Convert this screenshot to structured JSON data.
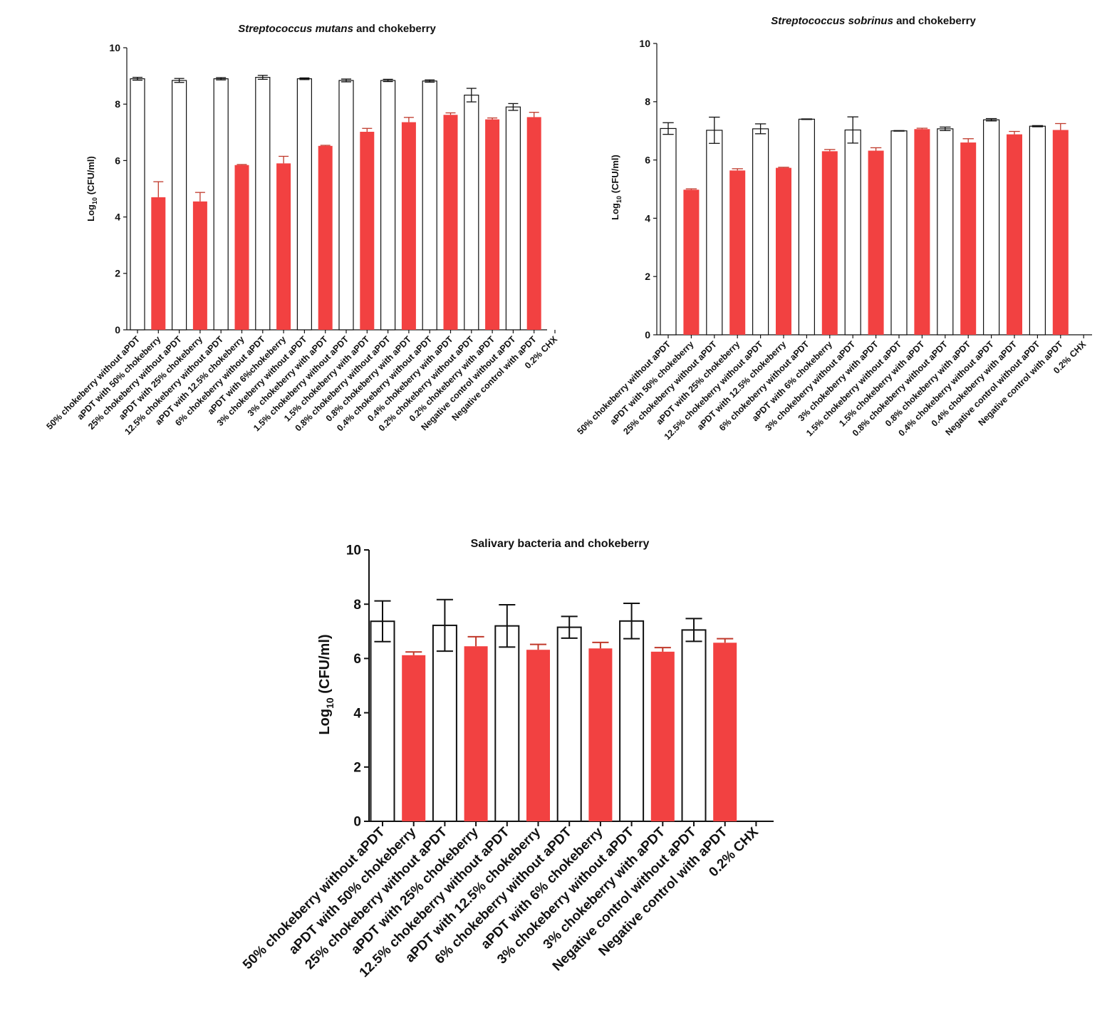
{
  "colors": {
    "red": "#f24141",
    "white": "#ffffff",
    "outline": "#111111"
  },
  "chart_data": [
    {
      "type": "bar",
      "title": "and chokeberry",
      "title_italic": "Streptococcus mutans",
      "ylabel_main": "Log",
      "ylabel_sub": "10",
      "ylabel_rest": " (CFU/ml)",
      "ylim": [
        0,
        10
      ],
      "yticks": [
        "0",
        "2",
        "4",
        "6",
        "8",
        "10"
      ],
      "categories": [
        "50% chokeberry without aPDT",
        "aPDT with 50% chokeberry",
        "25% chokeberry without aPDT",
        "aPDT with 25% chokeberry",
        "12.5% chokeberry without aPDT",
        "aPDT with 12.5% chokeberry",
        "6% chokeberry without aPDT",
        "aPDT with 6%chokeberry",
        "3% chokeberry without aPDT",
        "3% chokeberry with aPDT",
        "1.5% chokeberry without aPDT",
        "1.5% chokeberry with aPDT",
        "0.8% chokeberry without aPDT",
        "0.8% chokeberry with aPDT",
        "0.4% chokeberry without aPDT",
        "0.4% chokeberry with aPDT",
        "0.2% chokeberry without aPDT",
        "0.2% chokeberry with aPDT",
        "Negative control without aPDT",
        "Negative control with aPDT",
        "0.2% CHX"
      ],
      "values": [
        8.9,
        4.7,
        8.84,
        4.55,
        8.9,
        5.84,
        8.95,
        5.9,
        8.9,
        6.52,
        8.84,
        7.02,
        8.84,
        7.36,
        8.82,
        7.62,
        8.32,
        7.46,
        7.9,
        7.54,
        0
      ],
      "errors": [
        0.05,
        0.55,
        0.07,
        0.32,
        0.04,
        0.02,
        0.07,
        0.25,
        0.03,
        0.02,
        0.05,
        0.12,
        0.04,
        0.17,
        0.04,
        0.07,
        0.24,
        0.05,
        0.12,
        0.17,
        0
      ],
      "fills": [
        "white",
        "red",
        "white",
        "red",
        "white",
        "red",
        "white",
        "red",
        "white",
        "red",
        "white",
        "red",
        "white",
        "red",
        "white",
        "red",
        "white",
        "red",
        "white",
        "red",
        "none"
      ]
    },
    {
      "type": "bar",
      "title": "and chokeberry",
      "title_italic": "Streptococcus sobrinus",
      "ylabel_main": "Log",
      "ylabel_sub": "10",
      "ylabel_rest": " (CFU/ml)",
      "ylim": [
        0,
        10
      ],
      "yticks": [
        "0",
        "2",
        "4",
        "6",
        "8",
        "10"
      ],
      "categories": [
        "50% chokeberry without aPDT",
        "aPDT with 50% chokeberry",
        "25% chokeberry without aPDT",
        "aPDT with 25% chokeberry",
        "12.5% chokeberry without aPDT",
        "aPDT with 12.5% chokeberry",
        "6% chokeberry without aPDT",
        "aPDT with 6% chokeberry",
        "3% chokeberry without aPDT",
        "3% chokeberry with aPDT",
        "1.5% chokeberry without aPDT",
        "1.5% chokeberry with aPDT",
        "0.8% chokeberry without aPDT",
        "0.8% chokeberry with aPDT",
        "0.4% chokeberry without aPDT",
        "0.4% chokeberry with aPDT",
        "Negative control without aPDT",
        "Negative control with aPDT",
        "0.2% CHX"
      ],
      "values": [
        7.08,
        4.98,
        7.02,
        5.64,
        7.07,
        5.73,
        7.4,
        6.3,
        7.03,
        6.32,
        7.0,
        7.06,
        7.07,
        6.6,
        7.38,
        6.88,
        7.16,
        7.03,
        0
      ],
      "errors": [
        0.2,
        0.03,
        0.45,
        0.06,
        0.17,
        0.02,
        0.01,
        0.06,
        0.45,
        0.1,
        0.01,
        0.03,
        0.06,
        0.13,
        0.04,
        0.1,
        0.02,
        0.22,
        0
      ],
      "fills": [
        "white",
        "red",
        "white",
        "red",
        "white",
        "red",
        "white",
        "red",
        "white",
        "red",
        "white",
        "red",
        "white",
        "red",
        "white",
        "red",
        "white",
        "red",
        "none"
      ]
    },
    {
      "type": "bar",
      "title": "Salivary bacteria and chokeberry",
      "title_italic": "",
      "ylabel_main": "Log",
      "ylabel_sub": "10",
      "ylabel_rest": " (CFU/ml)",
      "ylim": [
        0,
        10
      ],
      "yticks": [
        "0",
        "2",
        "4",
        "6",
        "8",
        "10"
      ],
      "categories": [
        "50% chokeberry without aPDT",
        "aPDT with 50% chokeberry",
        "25% chokeberry without aPDT",
        "aPDT with 25% chokeberry",
        "12.5% chokeberry without aPDT",
        "aPDT with 12.5% chokeberry",
        "6% chokeberry without aPDT",
        "aPDT with 6% chokeberry",
        "3% chokeberry without aPDT",
        "3% chokeberry with aPDT",
        "Negative control without aPDT",
        "Negative control with aPDT",
        "0.2% CHX"
      ],
      "values": [
        7.37,
        6.12,
        7.22,
        6.45,
        7.2,
        6.32,
        7.15,
        6.37,
        7.38,
        6.25,
        7.05,
        6.58,
        0
      ],
      "errors": [
        0.75,
        0.12,
        0.95,
        0.35,
        0.78,
        0.2,
        0.4,
        0.22,
        0.65,
        0.15,
        0.42,
        0.15,
        0
      ],
      "fills": [
        "white",
        "red",
        "white",
        "red",
        "white",
        "red",
        "white",
        "red",
        "white",
        "red",
        "white",
        "red",
        "none"
      ]
    }
  ]
}
